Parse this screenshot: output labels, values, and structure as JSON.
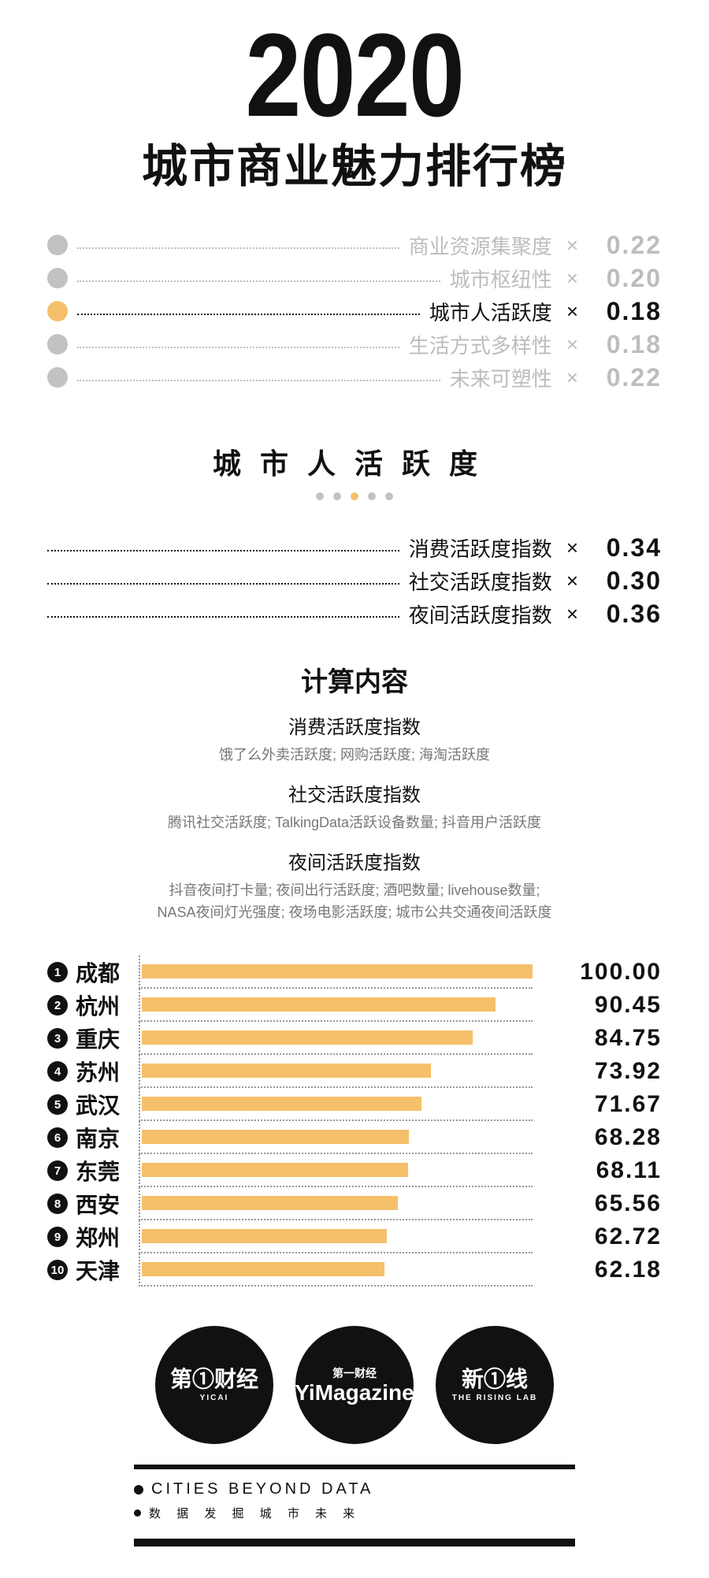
{
  "header": {
    "year": "2020",
    "subtitle": "城市商业魅力排行榜"
  },
  "colors": {
    "accent": "#f5c06a",
    "inactive": "#c2c2c2",
    "inactive_text": "#bdbdbd",
    "text": "#111111",
    "dot_inactive": "#c2c2c2",
    "bar": "#f5c06a",
    "desc": "#777777",
    "bg": "#ffffff"
  },
  "top_indices": [
    {
      "label": "商业资源集聚度",
      "weight": "0.22",
      "active": false
    },
    {
      "label": "城市枢纽性",
      "weight": "0.20",
      "active": false
    },
    {
      "label": "城市人活跃度",
      "weight": "0.18",
      "active": true
    },
    {
      "label": "生活方式多样性",
      "weight": "0.18",
      "active": false
    },
    {
      "label": "未来可塑性",
      "weight": "0.22",
      "active": false
    }
  ],
  "section": {
    "title": "城市人活跃度",
    "active_index": 2,
    "dot_count": 5
  },
  "sub_indices": [
    {
      "label": "消费活跃度指数",
      "weight": "0.34"
    },
    {
      "label": "社交活跃度指数",
      "weight": "0.30"
    },
    {
      "label": "夜间活跃度指数",
      "weight": "0.36"
    }
  ],
  "calc": {
    "title": "计算内容",
    "groups": [
      {
        "head": "消费活跃度指数",
        "desc": "饿了么外卖活跃度; 网购活跃度; 海淘活跃度"
      },
      {
        "head": "社交活跃度指数",
        "desc": "腾讯社交活跃度; TalkingData活跃设备数量; 抖音用户活跃度"
      },
      {
        "head": "夜间活跃度指数",
        "desc": "抖音夜间打卡量; 夜间出行活跃度; 酒吧数量; livehouse数量;\nNASA夜间灯光强度; 夜场电影活跃度; 城市公共交通夜间活跃度"
      }
    ]
  },
  "chart": {
    "type": "bar-horizontal",
    "max": 100,
    "bar_color": "#f5c06a",
    "rows": [
      {
        "rank": "1",
        "city": "成都",
        "value": 100.0,
        "display": "100.00"
      },
      {
        "rank": "2",
        "city": "杭州",
        "value": 90.45,
        "display": "90.45"
      },
      {
        "rank": "3",
        "city": "重庆",
        "value": 84.75,
        "display": "84.75"
      },
      {
        "rank": "4",
        "city": "苏州",
        "value": 73.92,
        "display": "73.92"
      },
      {
        "rank": "5",
        "city": "武汉",
        "value": 71.67,
        "display": "71.67"
      },
      {
        "rank": "6",
        "city": "南京",
        "value": 68.28,
        "display": "68.28"
      },
      {
        "rank": "7",
        "city": "东莞",
        "value": 68.11,
        "display": "68.11"
      },
      {
        "rank": "8",
        "city": "西安",
        "value": 65.56,
        "display": "65.56"
      },
      {
        "rank": "9",
        "city": "郑州",
        "value": 62.72,
        "display": "62.72"
      },
      {
        "rank": "10",
        "city": "天津",
        "value": 62.18,
        "display": "62.18"
      }
    ]
  },
  "logos": [
    {
      "line1": "第①财经",
      "line2": "YICAI"
    },
    {
      "line0": "第一财经",
      "line1": "YiMagazine",
      "line2": ""
    },
    {
      "line1": "新①线",
      "line2": "THE RISING LAB"
    }
  ],
  "footer": {
    "tag_en": "CITIES BEYOND DATA",
    "tag_cn": "数 据 发 掘 城 市 未 来"
  }
}
